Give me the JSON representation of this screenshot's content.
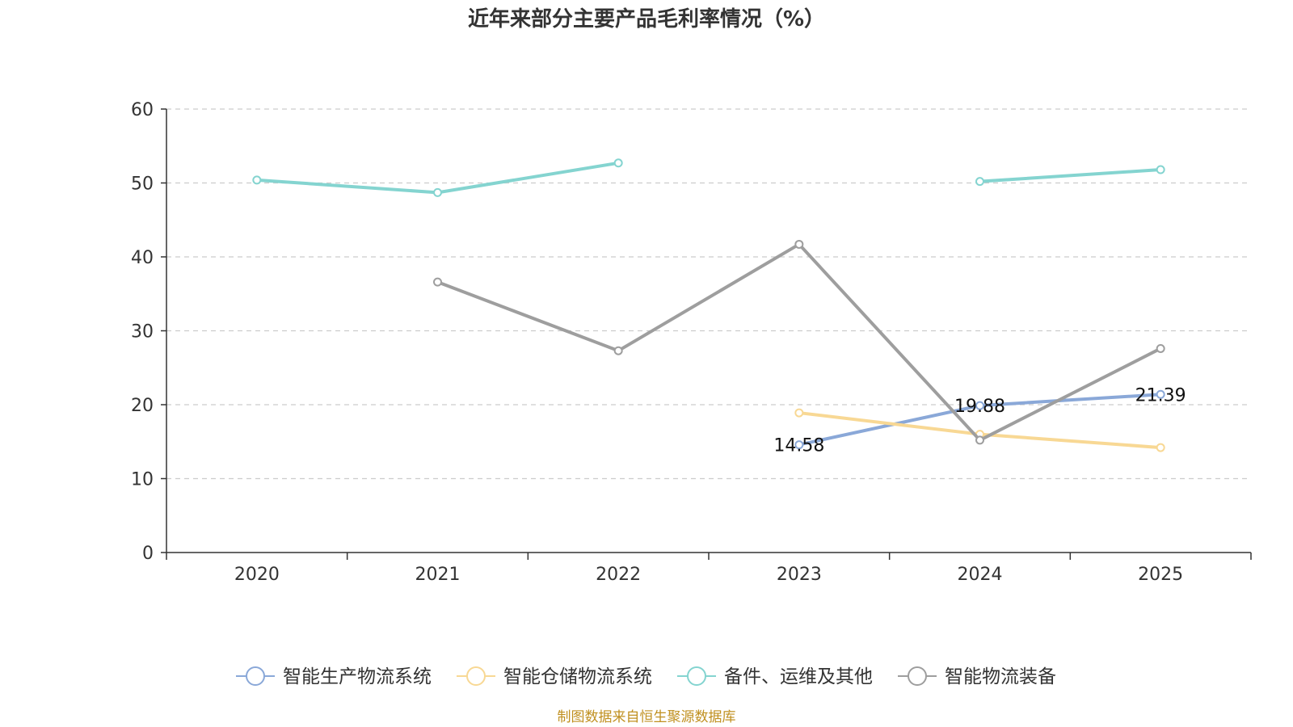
{
  "chart_data": {
    "type": "line",
    "title": "近年来部分主要产品毛利率情况（%）",
    "categories": [
      "2020",
      "2021",
      "2022",
      "2023",
      "2024",
      "2025"
    ],
    "ylim": [
      0,
      60
    ],
    "yticks": [
      0,
      10,
      20,
      30,
      40,
      50,
      60
    ],
    "grid": true,
    "legend_position": "bottom",
    "series": [
      {
        "name": "智能生产物流系统",
        "color": "#8aa8d8",
        "values": [
          null,
          null,
          null,
          14.58,
          19.88,
          21.39
        ],
        "labels": [
          null,
          null,
          null,
          "14.58",
          "19.88",
          "21.39"
        ]
      },
      {
        "name": "智能仓储物流系统",
        "color": "#f8d894",
        "values": [
          null,
          null,
          null,
          18.9,
          16.0,
          14.2
        ],
        "labels": [
          null,
          null,
          null,
          null,
          null,
          null
        ]
      },
      {
        "name": "备件、运维及其他",
        "color": "#84d4d0",
        "values": [
          50.4,
          48.7,
          52.7,
          null,
          50.2,
          51.8
        ],
        "labels": [
          null,
          null,
          null,
          null,
          null,
          null
        ]
      },
      {
        "name": "智能物流装备",
        "color": "#9e9e9e",
        "values": [
          null,
          36.6,
          27.3,
          41.7,
          15.2,
          27.6
        ],
        "labels": [
          null,
          null,
          null,
          null,
          null,
          null
        ]
      }
    ]
  },
  "source": "制图数据来自恒生聚源数据库"
}
